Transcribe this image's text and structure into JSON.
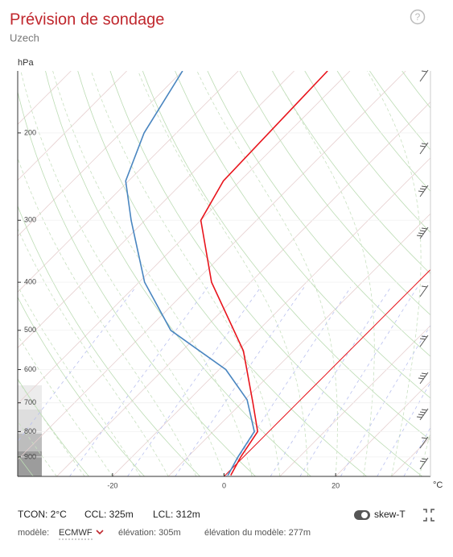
{
  "header": {
    "title": "Prévision de sondage",
    "subtitle": "Uzech"
  },
  "chart_data": {
    "type": "skew-t",
    "y_label": "hPa",
    "x_label": "°C",
    "log_y": true,
    "ylim": [
      985,
      150
    ],
    "yticks": [
      200,
      300,
      400,
      500,
      600,
      700,
      800,
      900
    ],
    "xlim": [
      -37,
      37
    ],
    "xticks": [
      -20,
      0,
      20
    ],
    "highlight_isotherm": 0,
    "series": [
      {
        "color": "#e8141c",
        "pressure": [
          980,
          900,
          800,
          700,
          550,
          400,
          300,
          250,
          150
        ],
        "values": [
          1,
          -0.5,
          -2,
          -8,
          -19,
          -37,
          -50,
          -53,
          -54
        ]
      },
      {
        "color": "#4a86c0",
        "pressure": [
          980,
          900,
          800,
          690,
          600,
          500,
          400,
          300,
          250,
          200,
          150
        ],
        "values": [
          0.5,
          -1,
          -2.6,
          -9.6,
          -18.8,
          -35.7,
          -49,
          -62.5,
          -70.5,
          -75.8,
          -80
        ]
      }
    ]
  },
  "footer": {
    "items": [
      "TCON: 2°C",
      "CCL: 325m",
      "LCL: 312m"
    ],
    "toggle": "skew-T",
    "model_label": "modèle:",
    "model": "ECMWF",
    "elevation": "élévation: 305m",
    "model_elevation": "élévation du modèle: 277m"
  }
}
